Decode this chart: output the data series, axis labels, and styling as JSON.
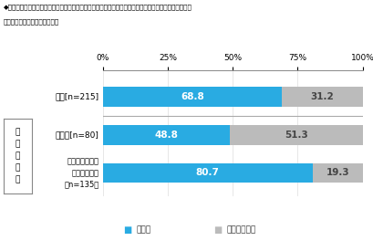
{
  "title_line1": "◆新型コロナウイルス感染症拡大防止のため、学校が臨時休業となってから、オンライン授業を受けたか",
  "title_line2": "［単一回答形式］　対象：学生",
  "cat0": "全体[n=215]",
  "cat1": "高校生[n=80]",
  "cat2": "大学生・短大生\n・専門学校生\n［n=135］",
  "values_blue": [
    68.8,
    48.8,
    80.7
  ],
  "values_gray": [
    31.2,
    51.3,
    19.3
  ],
  "color_blue": "#29ABE2",
  "color_gray": "#BBBBBB",
  "group_label": "学\n生\n区\n分\n別",
  "legend_blue": "受けた",
  "legend_gray": "受けなかった",
  "xticks": [
    0,
    25,
    50,
    75,
    100
  ],
  "xticklabels": [
    "0%",
    "25%",
    "50%",
    "75%",
    "100%"
  ],
  "background_color": "#FFFFFF",
  "bar_height": 0.52
}
